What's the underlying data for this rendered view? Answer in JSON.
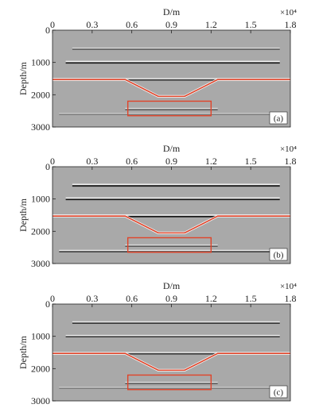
{
  "chart_data": [
    {
      "type": "heatmap",
      "panel_label": "(a)",
      "xlabel": "D/m",
      "x_multiplier": "×10⁴",
      "xticks": [
        "0",
        "0.3",
        "0.6",
        "0.9",
        "1.2",
        "1.5",
        "1.8"
      ],
      "xlim": [
        0,
        1.8
      ],
      "ylabel": "Depth/m",
      "yticks": [
        "0",
        "1000",
        "2000",
        "3000"
      ],
      "ylim": [
        0,
        3000
      ],
      "reflectors": [
        {
          "x_start": 0.15,
          "x_end": 1.72,
          "depth": 580,
          "strength": "weak"
        },
        {
          "x_start": 0.1,
          "x_end": 1.72,
          "depth": 1000,
          "strength": "strong"
        },
        {
          "x_start": 0.0,
          "x_end": 1.8,
          "depth": 1530,
          "strength": "medium"
        },
        {
          "x_start": 0.55,
          "x_end": 1.25,
          "depth": 2450,
          "strength": "weak"
        },
        {
          "x_start": 0.05,
          "x_end": 1.75,
          "depth": 2600,
          "strength": "faint"
        }
      ],
      "interface_line": {
        "color": "#e0442a",
        "x": [
          0,
          0.55,
          0.8,
          1.0,
          1.25,
          1.8
        ],
        "depth": [
          1530,
          1530,
          2050,
          2050,
          1530,
          1530
        ]
      },
      "highlight_box": {
        "color": "#e0442a",
        "x": [
          0.57,
          1.2
        ],
        "depth": [
          2200,
          2650
        ]
      }
    },
    {
      "type": "heatmap",
      "panel_label": "(b)",
      "xlabel": "D/m",
      "x_multiplier": "×10⁴",
      "xticks": [
        "0",
        "0.3",
        "0.6",
        "0.9",
        "1.2",
        "1.5",
        "1.8"
      ],
      "xlim": [
        0,
        1.8
      ],
      "ylabel": "Depth/m",
      "yticks": [
        "0",
        "1000",
        "2000",
        "3000"
      ],
      "ylim": [
        0,
        3000
      ],
      "reflectors": [
        {
          "x_start": 0.15,
          "x_end": 1.72,
          "depth": 580,
          "strength": "strong"
        },
        {
          "x_start": 0.1,
          "x_end": 1.72,
          "depth": 1000,
          "strength": "strong"
        },
        {
          "x_start": 0.0,
          "x_end": 1.8,
          "depth": 1530,
          "strength": "strong"
        },
        {
          "x_start": 0.55,
          "x_end": 1.25,
          "depth": 2450,
          "strength": "weak"
        },
        {
          "x_start": 0.05,
          "x_end": 1.75,
          "depth": 2620,
          "strength": "medium"
        }
      ],
      "interface_line": {
        "color": "#e0442a",
        "x": [
          0,
          0.55,
          0.8,
          1.0,
          1.25,
          1.8
        ],
        "depth": [
          1530,
          1530,
          2050,
          2050,
          1530,
          1530
        ]
      },
      "highlight_box": {
        "color": "#e0442a",
        "x": [
          0.57,
          1.2
        ],
        "depth": [
          2200,
          2650
        ]
      }
    },
    {
      "type": "heatmap",
      "panel_label": "(c)",
      "xlabel": "D/m",
      "x_multiplier": "×10⁴",
      "xticks": [
        "0",
        "0.3",
        "0.6",
        "0.9",
        "1.2",
        "1.5",
        "1.8"
      ],
      "xlim": [
        0,
        1.8
      ],
      "ylabel": "Depth/m",
      "yticks": [
        "0",
        "1000",
        "2000",
        "3000"
      ],
      "ylim": [
        0,
        3000
      ],
      "reflectors": [
        {
          "x_start": 0.15,
          "x_end": 1.72,
          "depth": 580,
          "strength": "medium"
        },
        {
          "x_start": 0.1,
          "x_end": 1.72,
          "depth": 1000,
          "strength": "medium"
        },
        {
          "x_start": 0.0,
          "x_end": 1.8,
          "depth": 1530,
          "strength": "medium"
        },
        {
          "x_start": 0.55,
          "x_end": 1.25,
          "depth": 2450,
          "strength": "weak"
        },
        {
          "x_start": 0.05,
          "x_end": 1.75,
          "depth": 2600,
          "strength": "faint"
        }
      ],
      "interface_line": {
        "color": "#e0442a",
        "x": [
          0,
          0.55,
          0.8,
          1.0,
          1.25,
          1.8
        ],
        "depth": [
          1530,
          1530,
          2050,
          2050,
          1530,
          1530
        ]
      },
      "highlight_box": {
        "color": "#e0442a",
        "x": [
          0.57,
          1.2
        ],
        "depth": [
          2200,
          2650
        ]
      }
    }
  ],
  "colors": {
    "background": "#a9a9a9",
    "reflector_dark": "#1a1a1a",
    "reflector_light": "#f2f2f2",
    "axis": "#222222"
  }
}
